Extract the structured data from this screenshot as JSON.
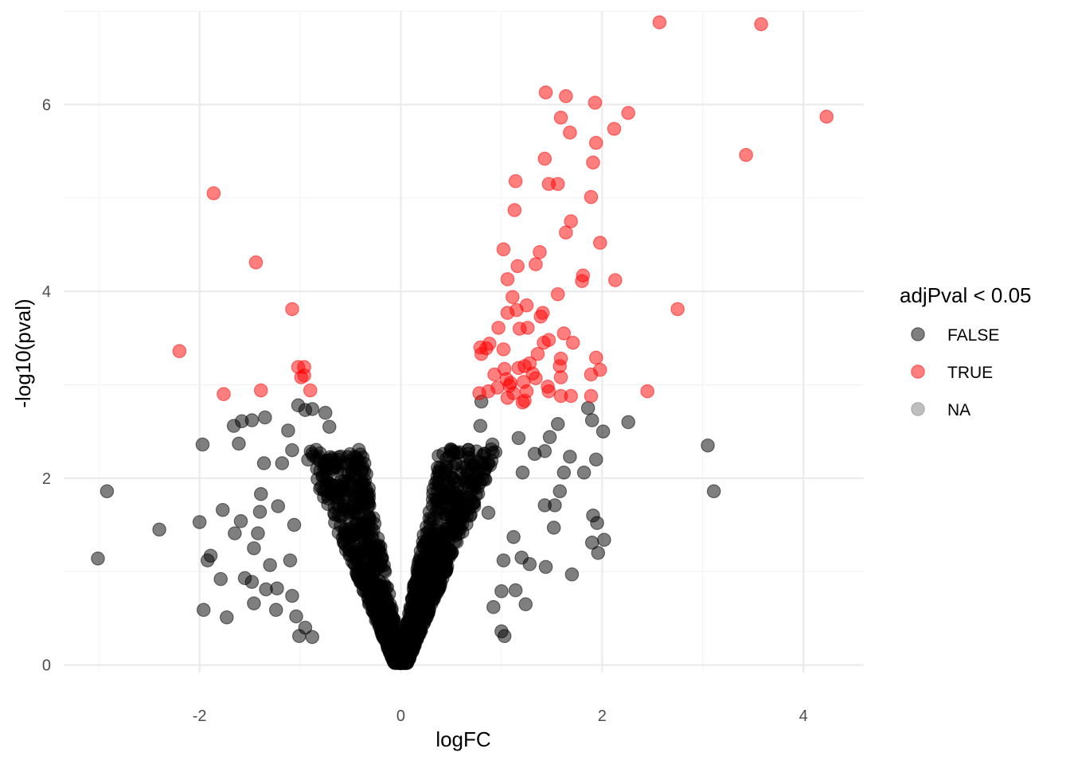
{
  "chart_data": {
    "type": "scatter",
    "title": "",
    "xlabel": "logFC",
    "ylabel": "-log10(pval)",
    "xlim": [
      -3.35,
      4.6
    ],
    "ylim": [
      -0.08,
      7.0
    ],
    "x_ticks": [
      -2,
      0,
      2,
      4
    ],
    "x_tick_labels": [
      "-2",
      "0",
      "2",
      "4"
    ],
    "y_ticks": [
      0,
      2,
      4,
      6
    ],
    "y_tick_labels": [
      "0",
      "2",
      "4",
      "6"
    ],
    "grid": true,
    "legend": {
      "title": "adjPval < 0.05",
      "placement": "right",
      "entries": [
        {
          "label": "FALSE",
          "color": "#000000"
        },
        {
          "label": "TRUE",
          "color": "#ff0000"
        },
        {
          "label": "NA",
          "color": "#7f7f7f"
        }
      ]
    },
    "point_opacity": 0.5,
    "series": [
      {
        "name": "TRUE",
        "color": "#ff0000",
        "points": [
          [
            2.57,
            6.88
          ],
          [
            3.58,
            6.86
          ],
          [
            4.23,
            5.87
          ],
          [
            3.43,
            5.46
          ],
          [
            2.75,
            3.81
          ],
          [
            2.45,
            2.93
          ],
          [
            1.44,
            6.13
          ],
          [
            1.64,
            6.09
          ],
          [
            1.93,
            6.02
          ],
          [
            2.26,
            5.91
          ],
          [
            1.59,
            5.86
          ],
          [
            2.12,
            5.74
          ],
          [
            1.68,
            5.7
          ],
          [
            1.94,
            5.59
          ],
          [
            1.43,
            5.42
          ],
          [
            1.91,
            5.38
          ],
          [
            1.14,
            5.18
          ],
          [
            1.47,
            5.15
          ],
          [
            1.56,
            5.15
          ],
          [
            1.89,
            5.01
          ],
          [
            1.13,
            4.87
          ],
          [
            1.69,
            4.75
          ],
          [
            1.64,
            4.63
          ],
          [
            1.98,
            4.52
          ],
          [
            1.02,
            4.45
          ],
          [
            1.38,
            4.42
          ],
          [
            1.16,
            4.27
          ],
          [
            1.34,
            4.29
          ],
          [
            1.06,
            4.13
          ],
          [
            1.81,
            4.17
          ],
          [
            1.8,
            4.11
          ],
          [
            2.13,
            4.12
          ],
          [
            1.56,
            3.97
          ],
          [
            1.11,
            3.94
          ],
          [
            1.25,
            3.85
          ],
          [
            1.06,
            3.77
          ],
          [
            1.15,
            3.8
          ],
          [
            1.41,
            3.77
          ],
          [
            1.39,
            3.73
          ],
          [
            0.97,
            3.61
          ],
          [
            1.18,
            3.6
          ],
          [
            1.26,
            3.61
          ],
          [
            1.62,
            3.55
          ],
          [
            1.42,
            3.45
          ],
          [
            1.47,
            3.48
          ],
          [
            1.71,
            3.45
          ],
          [
            0.79,
            3.4
          ],
          [
            0.88,
            3.44
          ],
          [
            0.85,
            3.39
          ],
          [
            1.02,
            3.38
          ],
          [
            0.8,
            3.33
          ],
          [
            1.36,
            3.33
          ],
          [
            1.94,
            3.29
          ],
          [
            1.59,
            3.28
          ],
          [
            1.17,
            3.18
          ],
          [
            1.23,
            3.2
          ],
          [
            1.28,
            3.23
          ],
          [
            1.58,
            3.2
          ],
          [
            1.03,
            3.17
          ],
          [
            1.98,
            3.16
          ],
          [
            1.89,
            3.11
          ],
          [
            0.93,
            3.11
          ],
          [
            1.31,
            3.12
          ],
          [
            1.34,
            3.07
          ],
          [
            1.59,
            3.08
          ],
          [
            1.05,
            3.06
          ],
          [
            1.09,
            3.02
          ],
          [
            1.22,
            3.03
          ],
          [
            1.08,
            2.99
          ],
          [
            1.46,
            2.98
          ],
          [
            0.96,
            2.97
          ],
          [
            0.87,
            2.93
          ],
          [
            1.25,
            2.93
          ],
          [
            1.47,
            2.93
          ],
          [
            0.78,
            2.91
          ],
          [
            1.12,
            2.91
          ],
          [
            1.59,
            2.88
          ],
          [
            1.69,
            2.88
          ],
          [
            1.89,
            2.88
          ],
          [
            1.06,
            2.86
          ],
          [
            1.23,
            2.83
          ],
          [
            1.21,
            2.81
          ],
          [
            -1.86,
            5.05
          ],
          [
            -1.44,
            4.31
          ],
          [
            -1.08,
            3.81
          ],
          [
            -2.2,
            3.36
          ],
          [
            -1.02,
            3.19
          ],
          [
            -0.96,
            3.19
          ],
          [
            -0.96,
            3.1
          ],
          [
            -0.99,
            3.08
          ],
          [
            -0.9,
            2.94
          ],
          [
            -1.39,
            2.94
          ],
          [
            -1.76,
            2.9
          ]
        ]
      },
      {
        "name": "FALSE",
        "color": "#000000",
        "points": [
          [
            -3.01,
            1.14
          ],
          [
            -2.92,
            1.86
          ],
          [
            -2.4,
            1.45
          ],
          [
            -1.97,
            2.36
          ],
          [
            -2.0,
            1.53
          ],
          [
            -1.89,
            1.17
          ],
          [
            -1.92,
            1.12
          ],
          [
            -1.96,
            0.59
          ],
          [
            -1.73,
            0.51
          ],
          [
            -1.79,
            0.92
          ],
          [
            -1.77,
            1.66
          ],
          [
            -1.66,
            2.56
          ],
          [
            -1.61,
            2.37
          ],
          [
            -1.58,
            2.61
          ],
          [
            -1.48,
            2.62
          ],
          [
            -1.35,
            2.65
          ],
          [
            -1.36,
            2.16
          ],
          [
            -1.39,
            1.83
          ],
          [
            -1.4,
            1.64
          ],
          [
            -1.42,
            1.41
          ],
          [
            -1.46,
            1.25
          ],
          [
            -1.48,
            0.89
          ],
          [
            -1.55,
            0.93
          ],
          [
            -1.46,
            0.66
          ],
          [
            -1.24,
            0.59
          ],
          [
            -1.34,
            0.81
          ],
          [
            -1.23,
            0.82
          ],
          [
            -1.59,
            1.54
          ],
          [
            -1.65,
            1.41
          ],
          [
            -1.22,
            1.7
          ],
          [
            -1.3,
            1.07
          ],
          [
            -1.18,
            2.16
          ],
          [
            -1.12,
            2.51
          ],
          [
            -1.08,
            2.3
          ],
          [
            -1.02,
            2.78
          ],
          [
            -0.95,
            2.73
          ],
          [
            -0.88,
            2.74
          ],
          [
            -0.75,
            2.7
          ],
          [
            -0.71,
            2.55
          ],
          [
            -1.06,
            1.5
          ],
          [
            -1.1,
            1.12
          ],
          [
            -1.08,
            0.74
          ],
          [
            -1.04,
            0.52
          ],
          [
            -1.01,
            0.31
          ],
          [
            -0.95,
            0.4
          ],
          [
            -0.88,
            0.3
          ],
          [
            3.05,
            2.35
          ],
          [
            3.11,
            1.86
          ],
          [
            2.01,
            2.5
          ],
          [
            2.26,
            2.6
          ],
          [
            1.9,
            2.62
          ],
          [
            1.86,
            2.75
          ],
          [
            1.94,
            2.2
          ],
          [
            1.82,
            2.06
          ],
          [
            1.91,
            1.6
          ],
          [
            1.95,
            1.52
          ],
          [
            2.02,
            1.34
          ],
          [
            1.96,
            1.2
          ],
          [
            1.9,
            1.31
          ],
          [
            1.7,
            0.97
          ],
          [
            1.68,
            2.23
          ],
          [
            1.62,
            2.06
          ],
          [
            1.58,
            1.86
          ],
          [
            1.53,
            1.71
          ],
          [
            1.52,
            1.47
          ],
          [
            1.43,
            1.71
          ],
          [
            1.44,
            1.05
          ],
          [
            1.28,
            1.08
          ],
          [
            1.2,
            1.15
          ],
          [
            1.24,
            0.65
          ],
          [
            1.14,
            0.8
          ],
          [
            1.03,
            0.31
          ],
          [
            1.0,
            0.36
          ],
          [
            1.56,
            2.58
          ],
          [
            1.48,
            2.44
          ],
          [
            1.43,
            2.29
          ],
          [
            1.33,
            2.26
          ],
          [
            1.17,
            2.43
          ],
          [
            1.21,
            2.06
          ],
          [
            1.12,
            1.37
          ],
          [
            1.02,
            1.12
          ],
          [
            1.0,
            0.79
          ],
          [
            0.92,
            0.62
          ],
          [
            0.83,
            2.26
          ],
          [
            0.79,
            2.56
          ],
          [
            0.91,
            2.36
          ],
          [
            0.8,
            2.82
          ],
          [
            0.87,
            1.63
          ]
        ],
        "note_cloud": "plus a dense cloud of several thousand points forming a V-shape around (0, 0), extending to about |logFC| 0.9 at -log10(pval) 2.8"
      },
      {
        "name": "NA",
        "color": "#7f7f7f",
        "points": []
      }
    ]
  }
}
